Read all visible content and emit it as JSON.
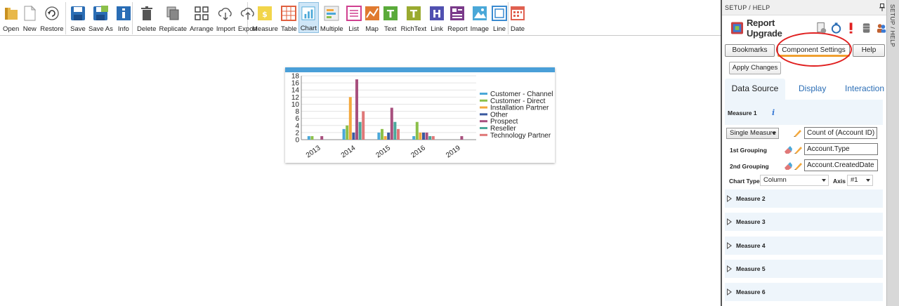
{
  "toolbar": {
    "groups": [
      [
        {
          "label": "Open",
          "icon": "folder-icon"
        },
        {
          "label": "New",
          "icon": "new-document-icon"
        },
        {
          "label": "Restore",
          "icon": "restore-icon"
        }
      ],
      [
        {
          "label": "Save",
          "icon": "save-icon"
        },
        {
          "label": "Save As",
          "icon": "save-as-icon"
        },
        {
          "label": "Info",
          "icon": "info-icon"
        }
      ],
      [
        {
          "label": "Delete",
          "icon": "trash-icon"
        },
        {
          "label": "Replicate",
          "icon": "replicate-icon"
        },
        {
          "label": "Arrange",
          "icon": "arrange-icon"
        },
        {
          "label": "Import",
          "icon": "cloud-download-icon"
        },
        {
          "label": "Export",
          "icon": "cloud-upload-icon"
        }
      ],
      [
        {
          "label": "Measure",
          "icon": "measure-icon"
        },
        {
          "label": "Table",
          "icon": "table-icon"
        },
        {
          "label": "Chart",
          "icon": "chart-icon",
          "active": true
        },
        {
          "label": "Multiple",
          "icon": "multiple-icon"
        },
        {
          "label": "List",
          "icon": "list-icon"
        },
        {
          "label": "Map",
          "icon": "map-icon"
        },
        {
          "label": "Text",
          "icon": "text-icon"
        },
        {
          "label": "RichText",
          "icon": "richtext-icon"
        },
        {
          "label": "Link",
          "icon": "link-icon"
        },
        {
          "label": "Report",
          "icon": "report-icon"
        },
        {
          "label": "Image",
          "icon": "image-icon"
        },
        {
          "label": "Line",
          "icon": "line-icon"
        },
        {
          "label": "Date",
          "icon": "date-icon"
        }
      ]
    ]
  },
  "chart_data": {
    "type": "bar",
    "categories": [
      "2013",
      "2014",
      "2015",
      "2016",
      "2019"
    ],
    "ylim": [
      0,
      18
    ],
    "yticks": [
      0,
      2,
      4,
      6,
      8,
      10,
      12,
      14,
      16,
      18
    ],
    "series": [
      {
        "name": "Customer - Channel",
        "color": "#4aa8d8",
        "values": [
          1,
          3,
          2,
          1,
          0
        ]
      },
      {
        "name": "Customer - Direct",
        "color": "#8cc04a",
        "values": [
          1,
          4,
          3,
          5,
          0
        ]
      },
      {
        "name": "Installation Partner",
        "color": "#f4a83c",
        "values": [
          0,
          12,
          1,
          2,
          0
        ]
      },
      {
        "name": "Other",
        "color": "#3a5aa0",
        "values": [
          0,
          2,
          2,
          2,
          0
        ]
      },
      {
        "name": "Prospect",
        "color": "#a8507e",
        "values": [
          1,
          17,
          9,
          2,
          1
        ]
      },
      {
        "name": "Reseller",
        "color": "#4aa89a",
        "values": [
          0,
          5,
          5,
          1,
          0
        ]
      },
      {
        "name": "Technology Partner",
        "color": "#e07878",
        "values": [
          0,
          8,
          3,
          1,
          0
        ]
      }
    ],
    "legend_position": "right"
  },
  "panel": {
    "title": "SETUP / HELP",
    "side_tab": "SETUP / HELP",
    "report_upgrade": "Report Upgrade",
    "tabs": {
      "bookmarks": "Bookmarks",
      "component_settings": "Component Settings",
      "help": "Help"
    },
    "apply_changes": "Apply Changes",
    "subtabs": {
      "data_source": "Data Source",
      "display": "Display",
      "interaction": "Interaction"
    },
    "measure1": {
      "title": "Measure 1",
      "measure_type": "Single Measure",
      "measure_value": "Count of (Account ID)",
      "grouping1_label": "1st Grouping",
      "grouping1_value": "Account.Type",
      "grouping2_label": "2nd Grouping",
      "grouping2_value": "Account.CreatedDate",
      "chart_type_label": "Chart Type",
      "chart_type_value": "Column",
      "axis_label": "Axis",
      "axis_value": "#1"
    },
    "measures": [
      "Measure 2",
      "Measure 3",
      "Measure 4",
      "Measure 5",
      "Measure 6"
    ]
  },
  "colors": {
    "accent": "#4a9fd8",
    "highlight": "#e02020",
    "tab_underline": "#f0a030"
  }
}
